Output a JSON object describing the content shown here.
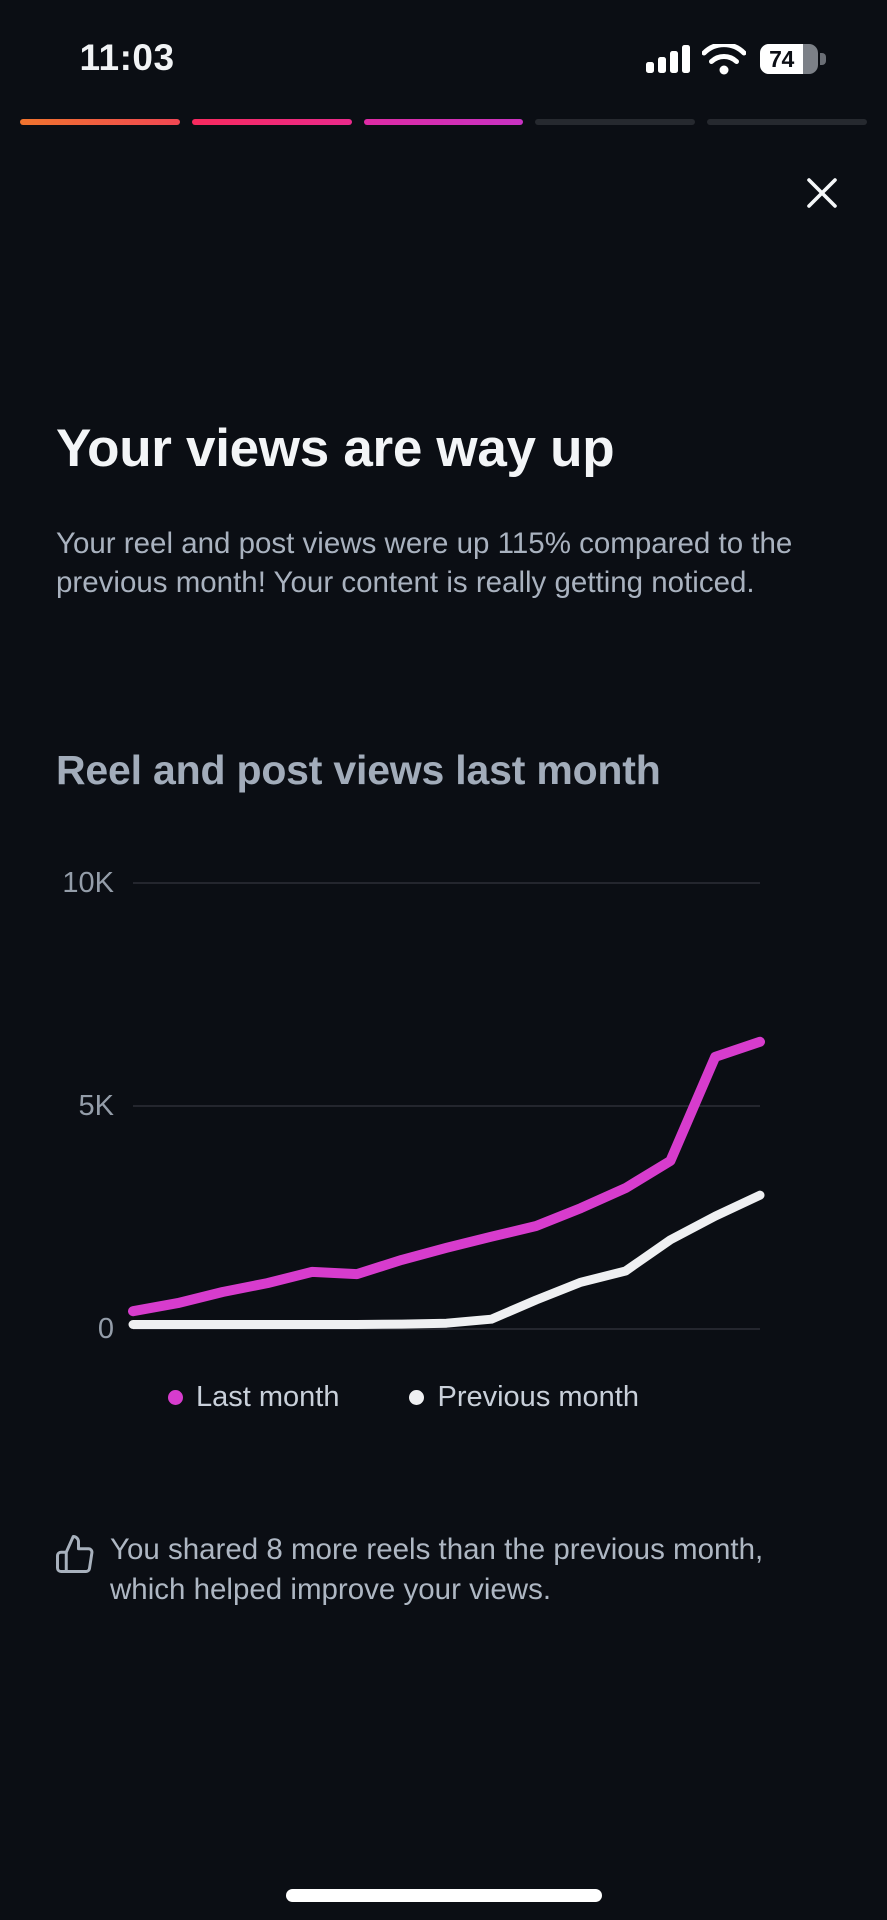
{
  "status_bar": {
    "time": "11:03",
    "battery_percent": "74",
    "icons": [
      "cellular-signal",
      "wifi",
      "battery"
    ]
  },
  "story_progress": {
    "segments_total": 5,
    "segments_filled": 3,
    "segment_gradients": [
      [
        "#F0742E",
        "#F14753"
      ],
      [
        "#F82A5E",
        "#EA2A8C"
      ],
      [
        "#DE2BA4",
        "#C832C3"
      ]
    ],
    "inactive_color": "#26292f"
  },
  "headline": {
    "title": "Your views are way up",
    "body": "Your reel and post views were up 115% compared to the previous month! Your content is really getting noticed."
  },
  "chart_data": {
    "type": "line",
    "title": "Reel and post views last month",
    "x_description": "days of last month (no x tick labels shown)",
    "x": [
      1,
      2,
      3,
      4,
      5,
      6,
      7,
      8,
      9,
      10,
      11,
      12,
      13,
      14,
      15
    ],
    "series": [
      {
        "name": "Last month",
        "color": "#d73ccd",
        "values": [
          400,
          580,
          830,
          1030,
          1280,
          1230,
          1550,
          1820,
          2070,
          2310,
          2710,
          3160,
          3770,
          6100,
          6440
        ]
      },
      {
        "name": "Previous month",
        "color": "#eff0f2",
        "values": [
          100,
          100,
          100,
          100,
          100,
          100,
          110,
          130,
          220,
          650,
          1050,
          1300,
          2000,
          2530,
          3000
        ]
      }
    ],
    "y_axis": [
      {
        "label": "10K",
        "value": 10000
      },
      {
        "label": "5K",
        "value": 5000
      },
      {
        "label": "0",
        "value": 0
      }
    ],
    "ylim": [
      0,
      10000
    ],
    "grid": "horizontal",
    "grid_color": "#2c2f36",
    "legend_position": "bottom"
  },
  "insight_note": {
    "icon": "thumbs-up",
    "text": "You shared 8 more reels than the previous month, which helped improve your views."
  }
}
